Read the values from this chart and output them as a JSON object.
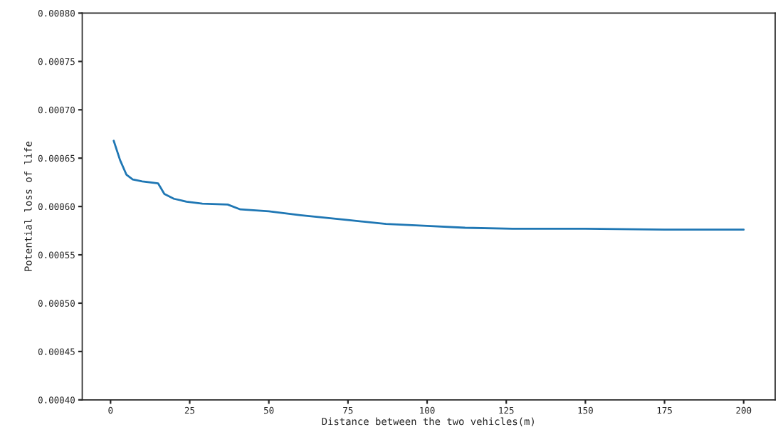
{
  "chart_data": {
    "type": "line",
    "xlabel": "Distance between the two vehicles(m)",
    "ylabel": "Potential loss of life",
    "x": [
      1,
      3,
      5,
      7,
      10,
      15,
      17,
      20,
      24,
      29,
      37,
      41,
      50,
      60,
      75,
      87,
      100,
      112,
      127,
      150,
      175,
      200
    ],
    "series": [
      {
        "color": "#1f77b4",
        "values": [
          0.000668,
          0.000648,
          0.000633,
          0.000628,
          0.000626,
          0.000624,
          0.000613,
          0.000608,
          0.000605,
          0.000603,
          0.000602,
          0.000597,
          0.000595,
          0.000591,
          0.000586,
          0.000582,
          0.00058,
          0.000578,
          0.000577,
          0.000577,
          0.000576,
          0.000576
        ]
      }
    ],
    "xlim": [
      -8.95,
      209.95
    ],
    "xticks": [
      0,
      25,
      50,
      75,
      100,
      125,
      150,
      175,
      200
    ],
    "ylim": [
      0.0004,
      0.0008
    ],
    "yticks": [
      {
        "value": 0.0004,
        "label": "0.00040"
      },
      {
        "value": 0.00045,
        "label": "0.00045"
      },
      {
        "value": 0.0005,
        "label": "0.00050"
      },
      {
        "value": 0.00055,
        "label": "0.00055"
      },
      {
        "value": 0.0006,
        "label": "0.00060"
      },
      {
        "value": 0.00065,
        "label": "0.00065"
      },
      {
        "value": 0.0007,
        "label": "0.00070"
      },
      {
        "value": 0.00075,
        "label": "0.00075"
      },
      {
        "value": 0.0008,
        "label": "0.00080"
      }
    ],
    "grid": false
  }
}
